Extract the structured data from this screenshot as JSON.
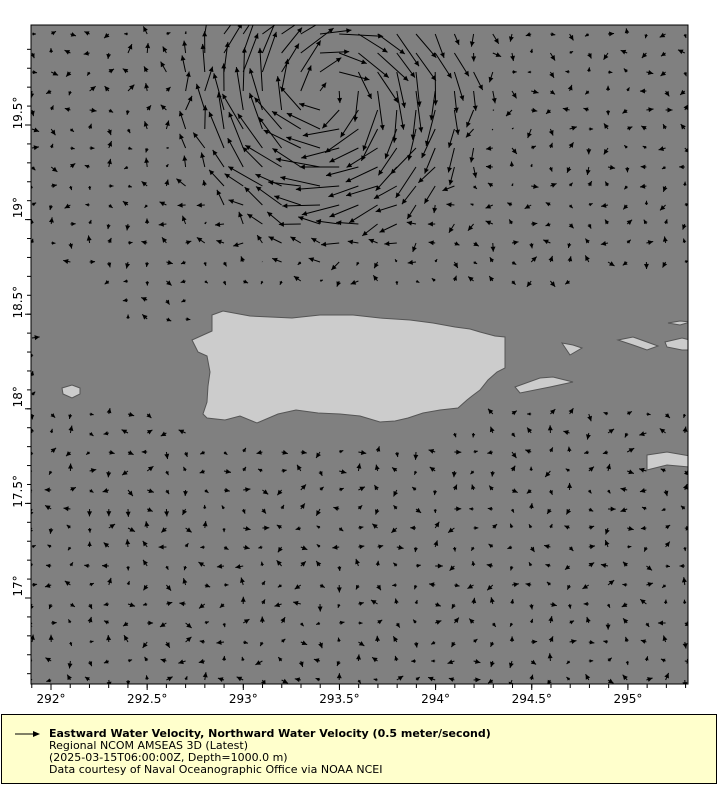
{
  "map": {
    "x_ticks": [
      "292°",
      "292.5°",
      "293°",
      "293.5°",
      "294°",
      "294.5°",
      "295°"
    ],
    "x_tick_values": [
      292,
      292.5,
      293,
      293.5,
      294,
      294.5,
      295
    ],
    "y_ticks": [
      "19.5°",
      "19°",
      "18.5°",
      "18°",
      "17.5°",
      "17°"
    ],
    "y_tick_values": [
      19.5,
      19,
      18.5,
      18,
      17.5,
      17
    ],
    "lon_range": [
      291.9,
      295.31
    ],
    "lat_range": [
      16.55,
      19.95
    ],
    "colors": {
      "ocean": "#808080",
      "land": "#cccccc",
      "coast": "#555555",
      "arrow": "#000000",
      "legend_bg": "#ffffcc"
    }
  },
  "legend": {
    "title": "Eastward Water Velocity, Northward Water Velocity (0.5 meter/second)",
    "line1": "Regional NCOM AMSEAS 3D (Latest)",
    "line2": "(2025-03-15T06:00:00Z, Depth=1000.0 m)",
    "line3": "Data courtesy of Naval Oceanographic Office via NOAA NCEI"
  }
}
